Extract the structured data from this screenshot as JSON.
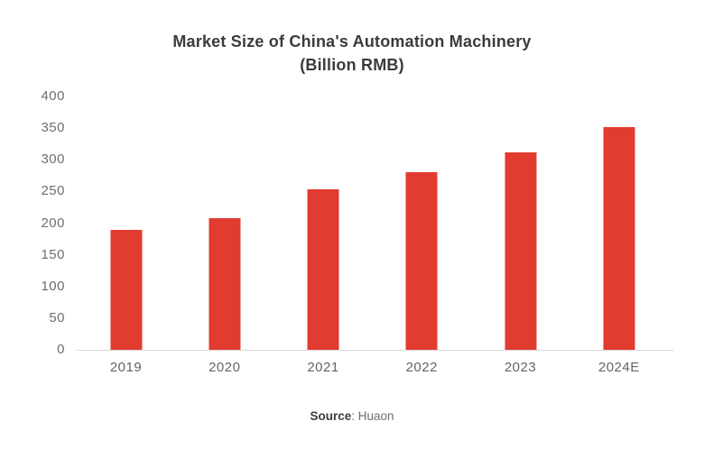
{
  "chart_data": {
    "type": "bar",
    "title": "Market Size of China's Automation Machinery",
    "subtitle": "(Billion RMB)",
    "categories": [
      "2019",
      "2020",
      "2021",
      "2022",
      "2023",
      "2024E"
    ],
    "values": [
      190,
      208,
      253,
      281,
      312,
      352
    ],
    "xlabel": "",
    "ylabel": "",
    "ylim": [
      0,
      400
    ],
    "yticks": [
      0,
      50,
      100,
      150,
      200,
      250,
      300,
      350,
      400
    ],
    "grid": false,
    "legend": false,
    "bar_color": "#e23b30",
    "axis_line_color": "#d9d9d9",
    "tick_label_color": "#6e6e6e",
    "title_color": "#3b3b3b"
  },
  "source": {
    "label": "Source",
    "rest": ": Huaon"
  }
}
